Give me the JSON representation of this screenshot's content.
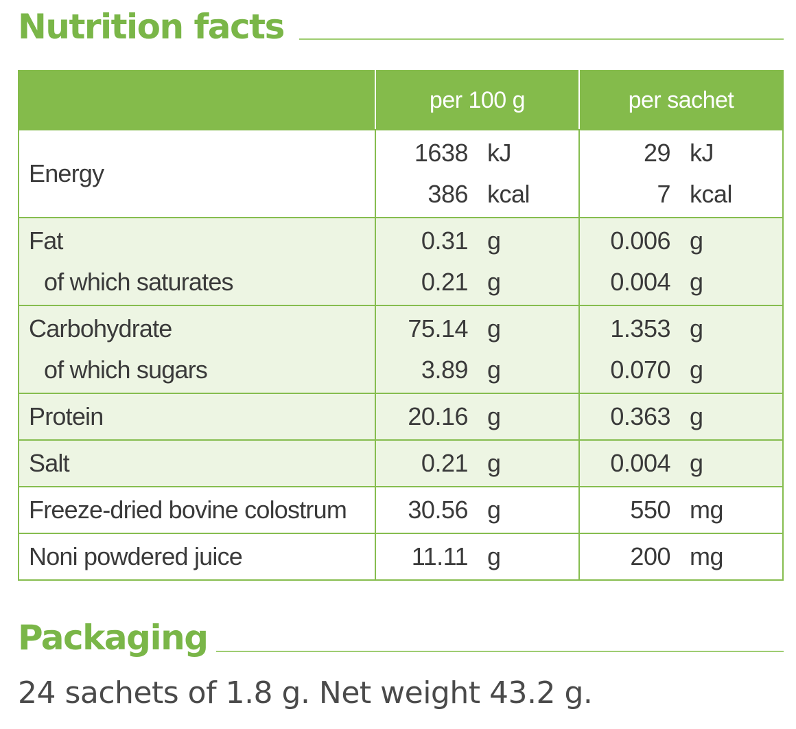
{
  "nutrition": {
    "title": "Nutrition facts",
    "columns": [
      "",
      "per 100 g",
      "per sachet"
    ],
    "rows": [
      {
        "shade": "white",
        "labels": [
          "Energy"
        ],
        "per100": [
          [
            "1638",
            "kJ"
          ],
          [
            "386",
            "kcal"
          ]
        ],
        "persachet": [
          [
            "29",
            "kJ"
          ],
          [
            "7",
            "kcal"
          ]
        ]
      },
      {
        "shade": "green",
        "labels": [
          "Fat",
          "of which saturates"
        ],
        "per100": [
          [
            "0.31",
            "g"
          ],
          [
            "0.21",
            "g"
          ]
        ],
        "persachet": [
          [
            "0.006",
            "g"
          ],
          [
            "0.004",
            "g"
          ]
        ]
      },
      {
        "shade": "green",
        "labels": [
          "Carbohydrate",
          "of which sugars"
        ],
        "per100": [
          [
            "75.14",
            "g"
          ],
          [
            "3.89",
            "g"
          ]
        ],
        "persachet": [
          [
            "1.353",
            "g"
          ],
          [
            "0.070",
            "g"
          ]
        ]
      },
      {
        "shade": "green",
        "labels": [
          "Protein"
        ],
        "per100": [
          [
            "20.16",
            "g"
          ]
        ],
        "persachet": [
          [
            "0.363",
            "g"
          ]
        ]
      },
      {
        "shade": "green",
        "labels": [
          "Salt"
        ],
        "per100": [
          [
            "0.21",
            "g"
          ]
        ],
        "persachet": [
          [
            "0.004",
            "g"
          ]
        ]
      },
      {
        "shade": "white",
        "labels": [
          "Freeze-dried bovine colostrum"
        ],
        "per100": [
          [
            "30.56",
            "g"
          ]
        ],
        "persachet": [
          [
            "550",
            "mg"
          ]
        ]
      },
      {
        "shade": "white",
        "labels": [
          "Noni powdered juice"
        ],
        "per100": [
          [
            "11.11",
            "g"
          ]
        ],
        "persachet": [
          [
            "200",
            "mg"
          ]
        ]
      }
    ]
  },
  "packaging": {
    "title": "Packaging",
    "text": "24 sachets of 1.8 g. Net weight 43.2 g."
  },
  "colors": {
    "accent_green": "#7ab648",
    "header_green": "#84bb4b",
    "row_tint": "#edf5e3"
  }
}
